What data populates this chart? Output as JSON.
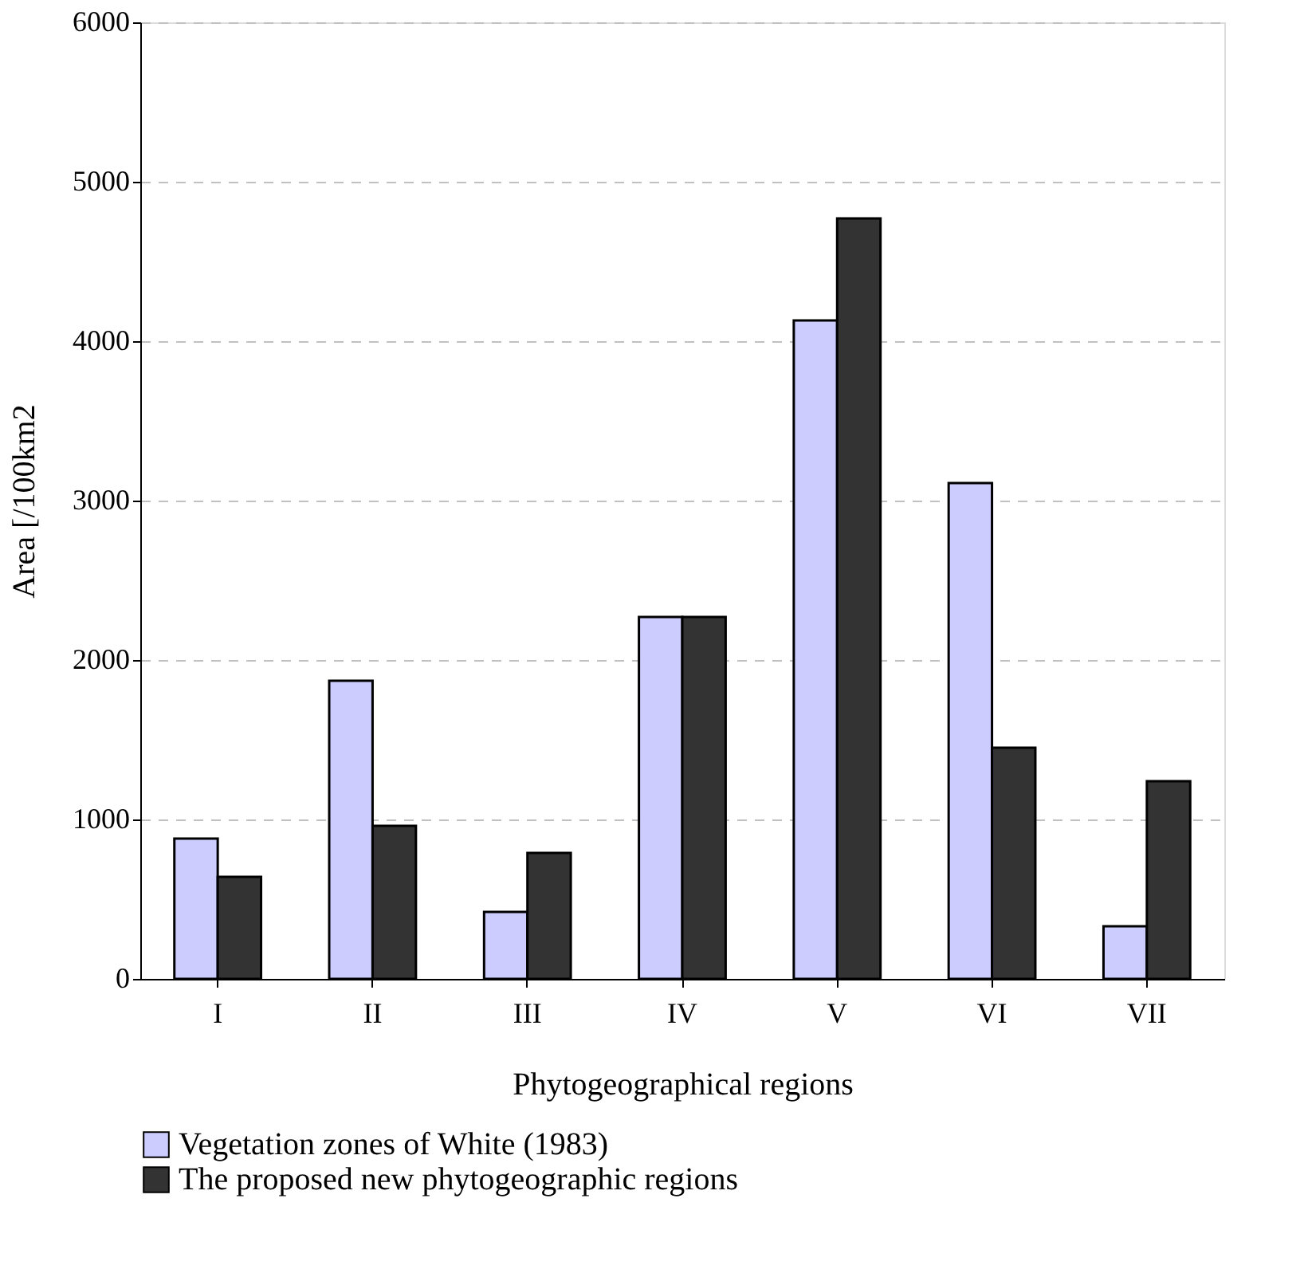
{
  "chart_data": {
    "type": "bar",
    "xlabel": "Phytogeographical regions",
    "ylabel": "Area [/100km2",
    "categories": [
      "I",
      "II",
      "III",
      "IV",
      "V",
      "VI",
      "VII"
    ],
    "series": [
      {
        "name": "Vegetation zones of White (1983)",
        "color": "#ccccff",
        "values": [
          880,
          1870,
          420,
          2270,
          4130,
          3110,
          330
        ]
      },
      {
        "name": "The proposed new phytogeographic regions",
        "color": "#333333",
        "values": [
          640,
          960,
          790,
          2270,
          4770,
          1450,
          1240
        ]
      }
    ],
    "ylim": [
      0,
      6000
    ],
    "yticks": [
      0,
      1000,
      2000,
      3000,
      4000,
      5000,
      6000
    ],
    "grid": "y",
    "legend": "bottom"
  }
}
